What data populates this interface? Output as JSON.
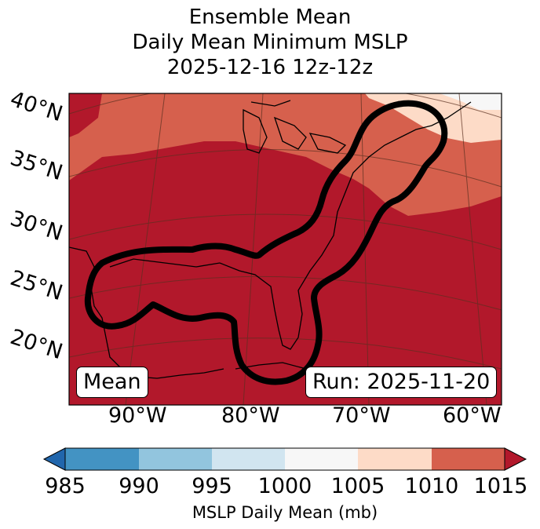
{
  "title": {
    "line1": "Ensemble Mean",
    "line2": "Daily Mean Minimum MSLP",
    "line3": "2025-12-16 12z-12z"
  },
  "map": {
    "lat_labels": [
      "40°N",
      "35°N",
      "30°N",
      "25°N",
      "20°N"
    ],
    "lon_labels": [
      "90°W",
      "80°W",
      "70°W",
      "60°W"
    ],
    "box_left": "Mean",
    "box_right": "Run: 2025-11-20"
  },
  "colorbar": {
    "ticks": [
      "985",
      "990",
      "995",
      "1000",
      "1005",
      "1010",
      "1015"
    ],
    "label": "MSLP Daily Mean (mb)",
    "colors": [
      "#2166ac",
      "#4393c3",
      "#92c5de",
      "#d1e5f0",
      "#f7f7f7",
      "#fddbc7",
      "#d6604d",
      "#b2182b"
    ]
  },
  "fill_colors": {
    "high": "#b2182b",
    "mid": "#d6604d",
    "low": "#fddbc7",
    "lowest": "#f7f7f7"
  }
}
